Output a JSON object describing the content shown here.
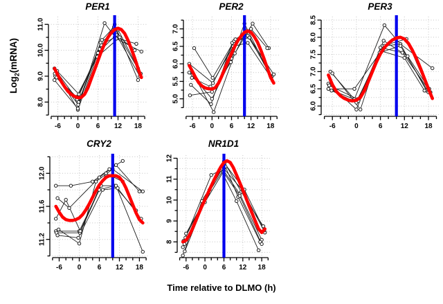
{
  "axis": {
    "ylabel_prefix": "Log",
    "ylabel_sub": "2",
    "ylabel_suffix": "(mRNA)",
    "xlabel": "Time relative to DLMO (h)"
  },
  "colors": {
    "mean": "#ff0000",
    "subject": "#1c1c1c",
    "dlmo": "#0000ee",
    "grid": "#c4c4c4",
    "axis": "#000000",
    "marker_fill": "#ffffff"
  },
  "chart_data": [
    {
      "type": "line",
      "title": "PER1",
      "xlim": [
        -8.8,
        20.6
      ],
      "ylim": [
        7.45,
        11.3
      ],
      "x_tick_labels": [
        -6,
        0,
        6,
        12,
        18
      ],
      "x_axis_from": -8,
      "x_axis_to": 20,
      "x_minor_step": 2,
      "y_tick_values": [
        8,
        9,
        10,
        11
      ],
      "y_tick_texts": [
        "8.0",
        "9.0",
        "10.0",
        "11.0"
      ],
      "y_minor_ticks": [
        7.5,
        8.5,
        9.5,
        10.5
      ],
      "dlmo_peak_x": 11,
      "mean_curve": {
        "x": [
          -7,
          -6,
          -5,
          -4,
          -3,
          -2,
          -1,
          0,
          1,
          2,
          3,
          4,
          5,
          6,
          7,
          8,
          9,
          10,
          11,
          12,
          13,
          14,
          15,
          16,
          17,
          18,
          19
        ],
        "y": [
          9.3,
          9.05,
          8.8,
          8.6,
          8.42,
          8.3,
          8.22,
          8.17,
          8.18,
          8.3,
          8.55,
          8.9,
          9.25,
          9.6,
          9.95,
          10.25,
          10.5,
          10.68,
          10.8,
          10.85,
          10.8,
          10.65,
          10.38,
          10.05,
          9.7,
          9.3,
          8.95
        ]
      },
      "subjects": [
        [
          [
            -7,
            9.3
          ],
          [
            0,
            7.7
          ],
          [
            6.5,
            10.05
          ],
          [
            11,
            11.0
          ],
          [
            18,
            8.85
          ]
        ],
        [
          [
            -6.5,
            9.2
          ],
          [
            -0.2,
            8.1
          ],
          [
            6,
            9.9
          ],
          [
            11.5,
            10.6
          ],
          [
            18.5,
            9.0
          ]
        ],
        [
          [
            -6.2,
            9.2
          ],
          [
            0.3,
            8.3
          ],
          [
            7,
            10.2
          ],
          [
            11,
            10.5
          ],
          [
            17.5,
            10.25
          ]
        ],
        [
          [
            -7,
            8.85
          ],
          [
            0,
            7.75
          ],
          [
            8,
            11.05
          ],
          [
            11.5,
            10.45
          ],
          [
            19,
            9.95
          ]
        ],
        [
          [
            -6.8,
            9.0
          ],
          [
            0.2,
            8.0
          ],
          [
            6.8,
            10.3
          ],
          [
            12,
            10.8
          ],
          [
            18,
            9.3
          ]
        ],
        [
          [
            -6.4,
            8.95
          ],
          [
            -0.4,
            8.2
          ],
          [
            5.8,
            9.75
          ],
          [
            12.5,
            10.5
          ],
          [
            17,
            10.0
          ]
        ],
        [
          [
            -6.9,
            9.1
          ],
          [
            0.1,
            7.9
          ],
          [
            7.2,
            10.4
          ],
          [
            10.8,
            10.9
          ],
          [
            18.8,
            9.1
          ]
        ]
      ]
    },
    {
      "type": "line",
      "title": "PER2",
      "xlim": [
        -8.8,
        20.6
      ],
      "ylim": [
        4.5,
        7.35
      ],
      "x_tick_labels": [
        -6,
        0,
        6,
        12,
        18
      ],
      "x_axis_from": -8,
      "x_axis_to": 20,
      "x_minor_step": 2,
      "y_tick_values": [
        5.0,
        5.5,
        6.0,
        6.5,
        7.0
      ],
      "y_tick_texts": [
        "5.0",
        "5.5",
        "6.0",
        "6.5",
        "7.0"
      ],
      "y_minor_ticks": [
        4.75,
        5.25,
        5.75,
        6.25,
        6.75,
        7.25
      ],
      "dlmo_peak_x": 10,
      "mean_curve": {
        "x": [
          -7,
          -6,
          -5,
          -4,
          -3,
          -2,
          -1,
          0,
          1,
          2,
          3,
          4,
          5,
          6,
          7,
          8,
          9,
          10,
          11,
          12,
          13,
          14,
          15,
          16,
          17,
          18,
          19
        ],
        "y": [
          5.95,
          5.78,
          5.6,
          5.45,
          5.36,
          5.31,
          5.29,
          5.28,
          5.32,
          5.45,
          5.65,
          5.88,
          6.1,
          6.3,
          6.5,
          6.67,
          6.8,
          6.9,
          6.94,
          6.9,
          6.78,
          6.62,
          6.4,
          6.15,
          5.88,
          5.62,
          5.45
        ]
      },
      "subjects": [
        [
          [
            -7,
            5.75
          ],
          [
            0,
            5.0
          ],
          [
            6,
            6.15
          ],
          [
            10,
            7.15
          ],
          [
            18,
            5.65
          ]
        ],
        [
          [
            -6.5,
            5.4
          ],
          [
            -0.3,
            4.85
          ],
          [
            6.2,
            6.6
          ],
          [
            11,
            6.8
          ],
          [
            18.5,
            5.65
          ]
        ],
        [
          [
            -5.5,
            6.45
          ],
          [
            0.2,
            5.6
          ],
          [
            6.8,
            6.65
          ],
          [
            11.5,
            6.75
          ],
          [
            19,
            5.7
          ]
        ],
        [
          [
            -6,
            5.75
          ],
          [
            0.5,
            4.62
          ],
          [
            7,
            6.3
          ],
          [
            12.5,
            7.15
          ],
          [
            17.5,
            6.45
          ]
        ],
        [
          [
            -6.8,
            5.1
          ],
          [
            0,
            5.2
          ],
          [
            5.8,
            6.05
          ],
          [
            10.5,
            6.95
          ],
          [
            18,
            5.65
          ]
        ],
        [
          [
            -6.2,
            5.6
          ],
          [
            -0.5,
            5.35
          ],
          [
            6.5,
            6.5
          ],
          [
            11,
            6.6
          ],
          [
            18.2,
            5.6
          ]
        ],
        [
          [
            -7,
            6.0
          ],
          [
            0.3,
            5.45
          ],
          [
            7.2,
            6.7
          ],
          [
            12,
            7.0
          ],
          [
            17,
            6.45
          ]
        ]
      ]
    },
    {
      "type": "line",
      "title": "PER3",
      "xlim": [
        -8.8,
        20.6
      ],
      "ylim": [
        5.7,
        8.6
      ],
      "x_tick_labels": [
        -6,
        0,
        6,
        12,
        18
      ],
      "x_axis_from": -8,
      "x_axis_to": 20,
      "x_minor_step": 2,
      "y_tick_values": [
        6.0,
        6.5,
        7.0,
        7.5,
        8.0,
        8.5
      ],
      "y_tick_texts": [
        "6.0",
        "6.5",
        "7.0",
        "7.5",
        "8.0",
        "8.5"
      ],
      "y_minor_ticks": [
        5.75,
        6.25,
        6.75,
        7.25,
        7.75,
        8.25
      ],
      "dlmo_peak_x": 10,
      "mean_curve": {
        "x": [
          -7,
          -6,
          -5,
          -4,
          -3,
          -2,
          -1,
          0,
          1,
          2,
          3,
          4,
          5,
          6,
          7,
          8,
          9,
          10,
          11,
          12,
          13,
          14,
          15,
          16,
          17,
          18,
          19
        ],
        "y": [
          6.9,
          6.62,
          6.42,
          6.3,
          6.22,
          6.17,
          6.15,
          6.17,
          6.25,
          6.45,
          6.72,
          7.0,
          7.28,
          7.52,
          7.7,
          7.82,
          7.92,
          7.98,
          8.0,
          7.95,
          7.82,
          7.62,
          7.38,
          7.1,
          6.8,
          6.5,
          6.22
        ]
      },
      "subjects": [
        [
          [
            -6.5,
            7.0
          ],
          [
            -0.5,
            6.2
          ],
          [
            7,
            8.35
          ],
          [
            11,
            7.8
          ],
          [
            17.5,
            6.45
          ]
        ],
        [
          [
            -7,
            6.65
          ],
          [
            0,
            5.9
          ],
          [
            6.5,
            7.75
          ],
          [
            12.5,
            7.95
          ],
          [
            18,
            6.45
          ]
        ],
        [
          [
            -6,
            6.95
          ],
          [
            1,
            5.9
          ],
          [
            6,
            7.7
          ],
          [
            11.5,
            7.55
          ],
          [
            18.5,
            6.4
          ]
        ],
        [
          [
            -6.8,
            6.6
          ],
          [
            0.3,
            6.2
          ],
          [
            7,
            7.75
          ],
          [
            11,
            7.8
          ],
          [
            19,
            7.1
          ]
        ],
        [
          [
            -5.5,
            6.5
          ],
          [
            -0.5,
            6.5
          ],
          [
            6.2,
            7.6
          ],
          [
            12,
            7.4
          ],
          [
            17,
            6.45
          ]
        ],
        [
          [
            -6.2,
            6.45
          ],
          [
            0,
            6.1
          ],
          [
            5.8,
            7.55
          ],
          [
            11,
            7.75
          ],
          [
            18,
            6.4
          ]
        ],
        [
          [
            -7,
            6.5
          ],
          [
            0.5,
            6.15
          ],
          [
            6.8,
            7.9
          ],
          [
            12.8,
            7.45
          ],
          [
            18.2,
            6.5
          ]
        ]
      ]
    },
    {
      "type": "line",
      "title": "CRY2",
      "xlim": [
        -8.8,
        20.6
      ],
      "ylim": [
        10.98,
        12.22
      ],
      "x_tick_labels": [
        -6,
        0,
        6,
        12,
        18
      ],
      "x_axis_from": -8,
      "x_axis_to": 20,
      "x_minor_step": 2,
      "y_tick_values": [
        11.2,
        11.6,
        12.0
      ],
      "y_tick_texts": [
        "11.2",
        "11.6",
        "12.0"
      ],
      "y_minor_ticks": [
        11.0,
        11.4,
        11.8,
        12.2
      ],
      "dlmo_peak_x": 10,
      "mean_curve": {
        "x": [
          -7,
          -6,
          -5,
          -4,
          -3,
          -2,
          -1,
          0,
          1,
          2,
          3,
          4,
          5,
          6,
          7,
          8,
          9,
          10,
          11,
          12,
          13,
          14,
          15,
          16,
          17,
          18,
          19
        ],
        "y": [
          11.6,
          11.53,
          11.47,
          11.44,
          11.43,
          11.43,
          11.44,
          11.46,
          11.5,
          11.56,
          11.63,
          11.71,
          11.79,
          11.86,
          11.91,
          11.95,
          11.97,
          11.97,
          11.97,
          11.95,
          11.9,
          11.82,
          11.72,
          11.62,
          11.52,
          11.44,
          11.4
        ]
      },
      "subjects": [
        [
          [
            -7,
            11.85
          ],
          [
            -2.5,
            11.85
          ],
          [
            4,
            11.9
          ],
          [
            9,
            12.05
          ],
          [
            13,
            12.15
          ]
        ],
        [
          [
            -6.5,
            11.7
          ],
          [
            -3,
            11.58
          ],
          [
            6,
            11.95
          ],
          [
            11,
            12.1
          ],
          [
            18,
            11.78
          ]
        ],
        [
          [
            -7,
            11.3
          ],
          [
            0,
            11.3
          ],
          [
            6,
            11.8
          ],
          [
            10.5,
            11.85
          ],
          [
            17,
            11.55
          ]
        ],
        [
          [
            -6.8,
            11.28
          ],
          [
            0.2,
            11.28
          ],
          [
            6.5,
            11.85
          ],
          [
            11,
            11.85
          ],
          [
            19,
            11.05
          ]
        ],
        [
          [
            -6.5,
            11.25
          ],
          [
            -0.3,
            11.22
          ],
          [
            7,
            11.8
          ],
          [
            11.5,
            11.82
          ],
          [
            18.5,
            11.45
          ]
        ],
        [
          [
            -7,
            11.45
          ],
          [
            -4,
            11.68
          ],
          [
            0.3,
            11.3
          ],
          [
            8,
            12.0
          ],
          [
            13,
            11.9
          ]
        ],
        [
          [
            -6.2,
            11.32
          ],
          [
            0,
            11.15
          ],
          [
            5,
            11.9
          ],
          [
            10,
            12.05
          ],
          [
            19,
            11.78
          ]
        ]
      ]
    },
    {
      "type": "line",
      "title": "NR1D1",
      "xlim": [
        -8.8,
        20.6
      ],
      "ylim": [
        7.25,
        12.15
      ],
      "x_tick_labels": [
        -6,
        0,
        6,
        12,
        18
      ],
      "x_axis_from": -8,
      "x_axis_to": 20,
      "x_minor_step": 2,
      "y_tick_values": [
        8,
        9,
        10,
        11,
        12
      ],
      "y_tick_texts": [
        "8",
        "9",
        "10",
        "11",
        "12"
      ],
      "y_minor_ticks": [
        7.5,
        8.5,
        9.5,
        10.5,
        11.5
      ],
      "dlmo_peak_x": 6,
      "mean_curve": {
        "x": [
          -7,
          -6,
          -5,
          -4,
          -3,
          -2,
          -1,
          0,
          1,
          2,
          3,
          4,
          5,
          6,
          7,
          8,
          9,
          10,
          11,
          12,
          13,
          14,
          15,
          16,
          17,
          18,
          19
        ],
        "y": [
          8.0,
          8.08,
          8.3,
          8.62,
          8.98,
          9.35,
          9.7,
          10.02,
          10.35,
          10.68,
          11.0,
          11.3,
          11.58,
          11.8,
          11.88,
          11.8,
          11.55,
          11.2,
          10.85,
          10.48,
          10.1,
          9.72,
          9.35,
          8.98,
          8.62,
          8.45,
          8.62
        ]
      },
      "subjects": [
        [
          [
            -7,
            7.35
          ],
          [
            -1,
            9.95
          ],
          [
            5,
            11.45
          ],
          [
            10,
            9.95
          ],
          [
            17,
            7.6
          ]
        ],
        [
          [
            -6.5,
            7.9
          ],
          [
            0,
            10.1
          ],
          [
            5.5,
            11.5
          ],
          [
            11,
            10.3
          ],
          [
            18,
            8.1
          ]
        ],
        [
          [
            -6,
            8.4
          ],
          [
            1,
            10.3
          ],
          [
            6,
            11.85
          ],
          [
            11.5,
            10.4
          ],
          [
            18.5,
            8.75
          ]
        ],
        [
          [
            -6.8,
            8.05
          ],
          [
            0.5,
            10.2
          ],
          [
            6.5,
            11.6
          ],
          [
            10.5,
            10.15
          ],
          [
            17.5,
            8.0
          ]
        ],
        [
          [
            -6.2,
            8.2
          ],
          [
            2,
            11.2
          ],
          [
            6,
            11.5
          ],
          [
            12,
            10.45
          ],
          [
            19,
            8.45
          ]
        ],
        [
          [
            -7,
            7.75
          ],
          [
            0,
            9.9
          ],
          [
            5.8,
            11.35
          ],
          [
            11,
            10.2
          ],
          [
            18,
            7.9
          ]
        ],
        [
          [
            -6.4,
            7.55
          ],
          [
            1.5,
            10.5
          ],
          [
            6.2,
            11.75
          ],
          [
            12.5,
            10.5
          ],
          [
            18.8,
            8.55
          ]
        ]
      ]
    }
  ]
}
